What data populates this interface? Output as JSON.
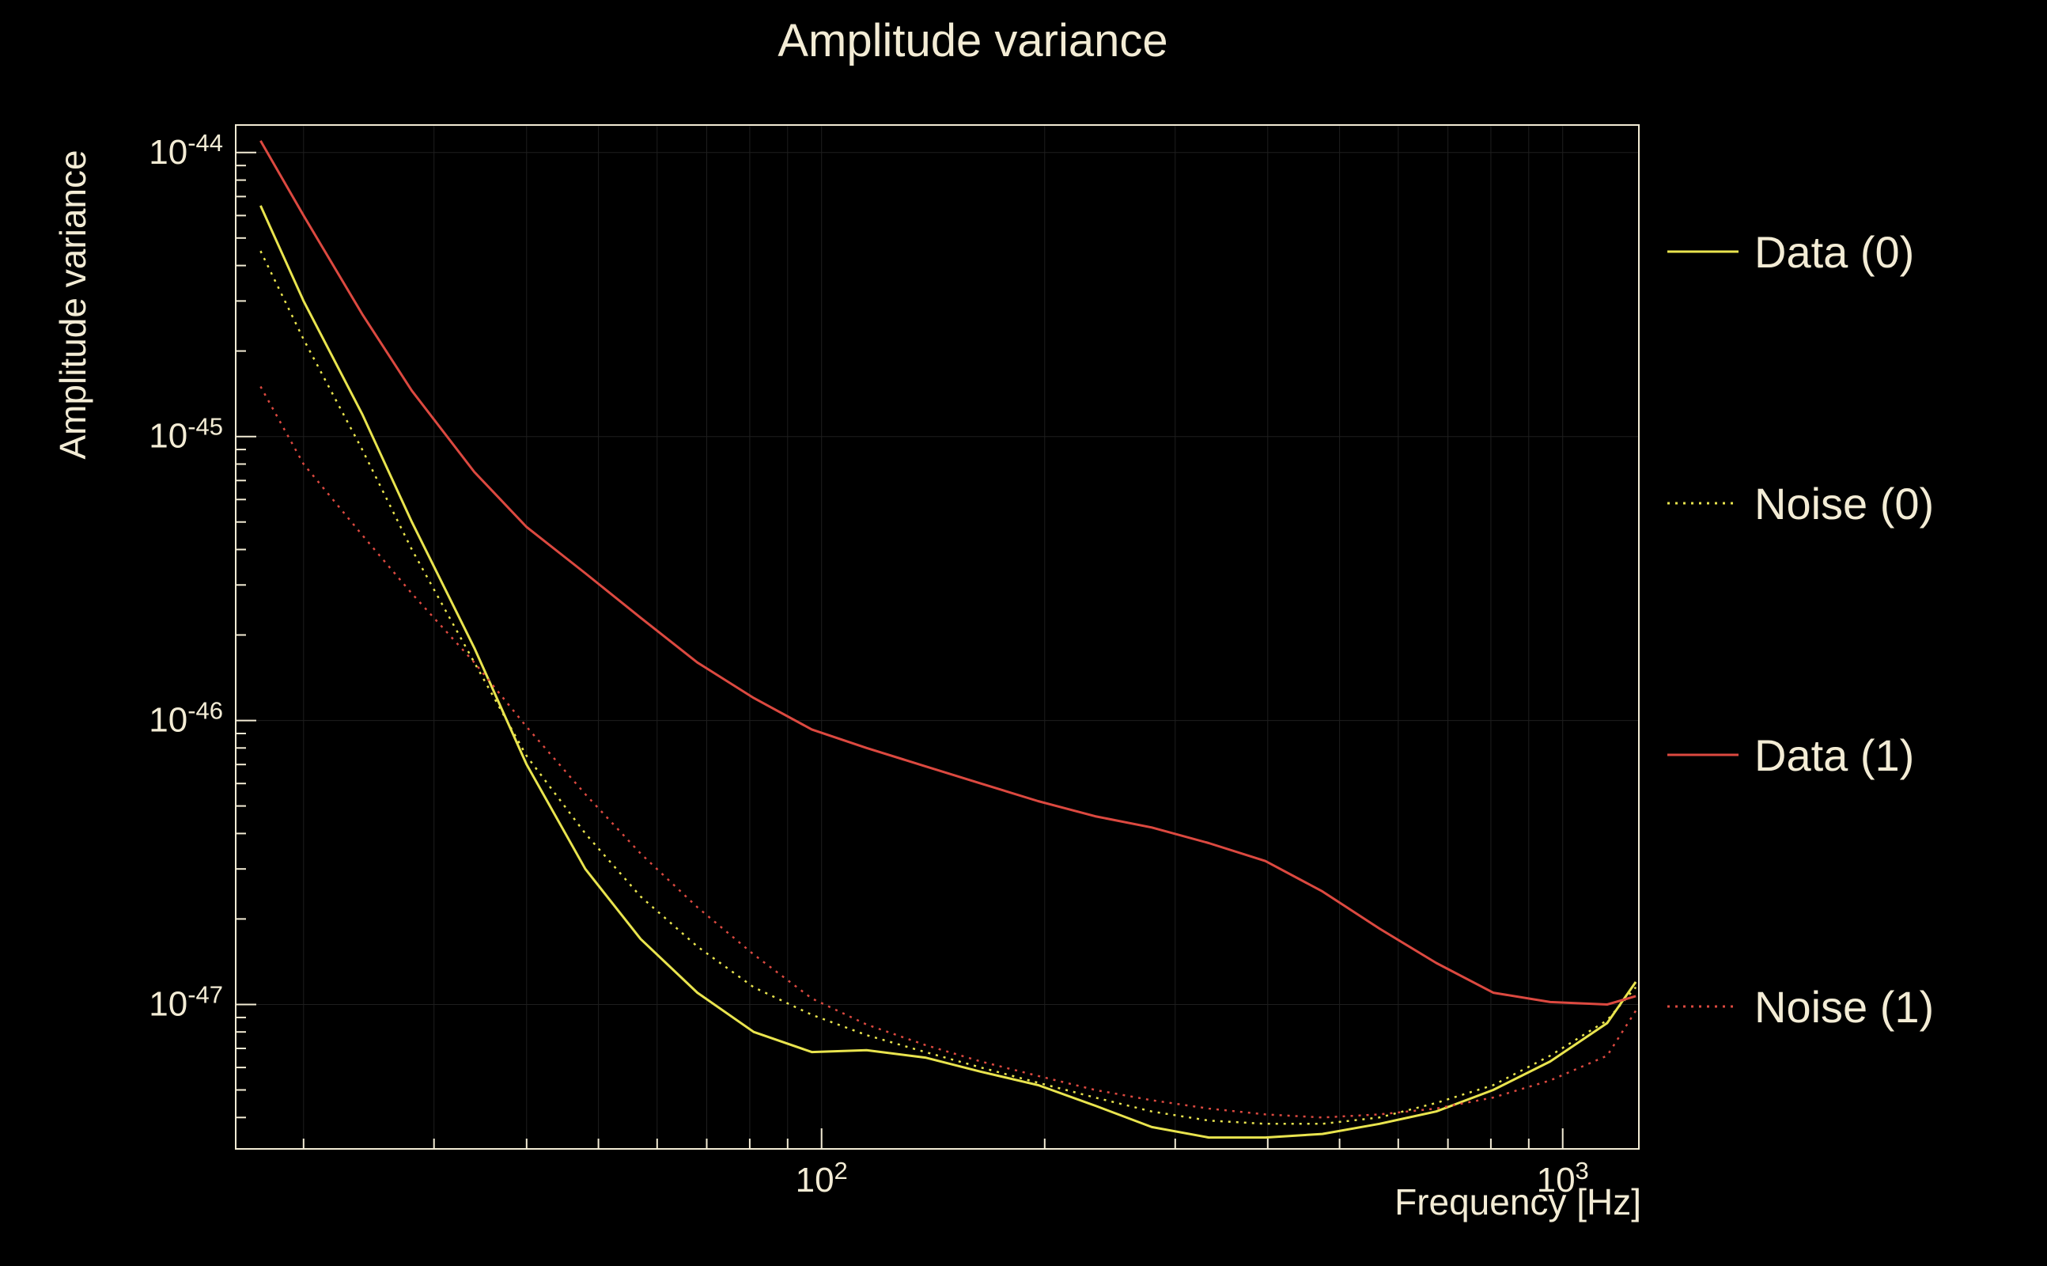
{
  "title": "Amplitude variance",
  "colors": {
    "background": "#000000",
    "text": "#f3ecd5",
    "axis": "#f3ecd5",
    "grid": "#1e1e1e",
    "yellow": "#e9e44e",
    "red": "#dc4940"
  },
  "chart_data": {
    "type": "line",
    "title": "Amplitude variance",
    "xlabel": "Frequency [Hz]",
    "ylabel": "Amplitude variance",
    "x_scale": "log",
    "y_scale": "log",
    "xlim": [
      16.2,
      1267
    ],
    "ylim": [
      3.1e-48,
      1.25e-44
    ],
    "grid": true,
    "legend_position": "right-outside",
    "x_ticks": [
      {
        "value": 100,
        "base": "10",
        "sup": "2",
        "label": "10²"
      },
      {
        "value": 1000,
        "base": "10",
        "sup": "3",
        "label": "10³"
      }
    ],
    "y_ticks": [
      {
        "value": 1e-44,
        "base": "10",
        "sup": "-44",
        "label": "10⁻⁴⁴"
      },
      {
        "value": 1e-45,
        "base": "10",
        "sup": "-45",
        "label": "10⁻⁴⁵"
      },
      {
        "value": 1e-46,
        "base": "10",
        "sup": "-46",
        "label": "10⁻⁴⁶"
      },
      {
        "value": 1e-47,
        "base": "10",
        "sup": "-47",
        "label": "10⁻⁴⁷"
      }
    ],
    "x": [
      17.5,
      20,
      24,
      28,
      34,
      40,
      48,
      57,
      68,
      81,
      97,
      115,
      138,
      164,
      196,
      234,
      279,
      333,
      397,
      474,
      566,
      675,
      806,
      962,
      1148,
      1255
    ],
    "series": [
      {
        "name": "Data (0)",
        "color_key": "yellow",
        "style": "solid",
        "values": [
          6.5e-45,
          3e-45,
          1.2e-45,
          5e-46,
          1.8e-46,
          7e-47,
          3e-47,
          1.7e-47,
          1.1e-47,
          8e-48,
          6.8e-48,
          6.9e-48,
          6.5e-48,
          5.8e-48,
          5.2e-48,
          4.4e-48,
          3.7e-48,
          3.4e-48,
          3.4e-48,
          3.5e-48,
          3.8e-48,
          4.2e-48,
          5e-48,
          6.3e-48,
          8.6e-48,
          1.2e-47
        ]
      },
      {
        "name": "Noise (0)",
        "color_key": "yellow",
        "style": "dotted",
        "values": [
          4.5e-45,
          2.2e-45,
          9e-46,
          4e-46,
          1.6e-46,
          7.5e-47,
          4e-47,
          2.4e-47,
          1.6e-47,
          1.15e-47,
          9.2e-48,
          7.8e-48,
          6.8e-48,
          6e-48,
          5.3e-48,
          4.7e-48,
          4.2e-48,
          3.9e-48,
          3.8e-48,
          3.8e-48,
          4e-48,
          4.5e-48,
          5.2e-48,
          6.6e-48,
          8.8e-48,
          1.15e-47
        ]
      },
      {
        "name": "Data (1)",
        "color_key": "red",
        "style": "solid",
        "values": [
          1.1e-44,
          6e-45,
          2.7e-45,
          1.45e-45,
          7.5e-46,
          4.8e-46,
          3.3e-46,
          2.3e-46,
          1.6e-46,
          1.2e-46,
          9.3e-47,
          8e-47,
          6.9e-47,
          6e-47,
          5.2e-47,
          4.6e-47,
          4.2e-47,
          3.7e-47,
          3.2e-47,
          2.5e-47,
          1.85e-47,
          1.4e-47,
          1.1e-47,
          1.02e-47,
          1e-47,
          1.07e-47
        ]
      },
      {
        "name": "Noise (1)",
        "color_key": "red",
        "style": "dotted",
        "values": [
          1.5e-45,
          8e-46,
          4.5e-46,
          2.8e-46,
          1.6e-46,
          9.5e-47,
          5.5e-47,
          3.4e-47,
          2.2e-47,
          1.5e-47,
          1.05e-47,
          8.5e-48,
          7.2e-48,
          6.3e-48,
          5.6e-48,
          5e-48,
          4.6e-48,
          4.3e-48,
          4.1e-48,
          4e-48,
          4.1e-48,
          4.3e-48,
          4.7e-48,
          5.4e-48,
          6.6e-48,
          9.5e-48
        ]
      }
    ]
  },
  "legend": {
    "entries": [
      {
        "label": "Data (0)"
      },
      {
        "label": "Noise (0)"
      },
      {
        "label": "Data (1)"
      },
      {
        "label": "Noise (1)"
      }
    ]
  }
}
